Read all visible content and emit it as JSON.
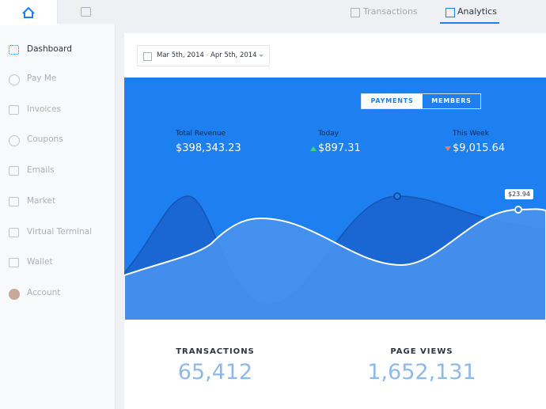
{
  "sidebar": {
    "items": [
      "Dashboard",
      "Pay Me",
      "Invoices",
      "Coupons",
      "Emails",
      "Market",
      "Virtual Terminal",
      "Wallet",
      "Account"
    ]
  },
  "top_nav": {
    "tabs": [
      "Transactions",
      "Analytics"
    ]
  },
  "date_range": {
    "start": "Mar 5th, 2014",
    "separator": "-",
    "end": "Apr 5th, 2014"
  },
  "toggle": [
    "PAYMENTS",
    "MEMBERS"
  ],
  "stats": [
    {
      "label": "Total Revenue",
      "value": "$398,343.23"
    },
    {
      "label": "Today",
      "value": "$897.31"
    },
    {
      "label": "This Week",
      "value": "$9,015.64"
    }
  ],
  "tooltip": "$23.94",
  "totals": [
    {
      "label": "TRANSACTIONS",
      "value": "65,412"
    },
    {
      "label": "PAGE VIEWS",
      "value": "1,652,131"
    }
  ]
}
